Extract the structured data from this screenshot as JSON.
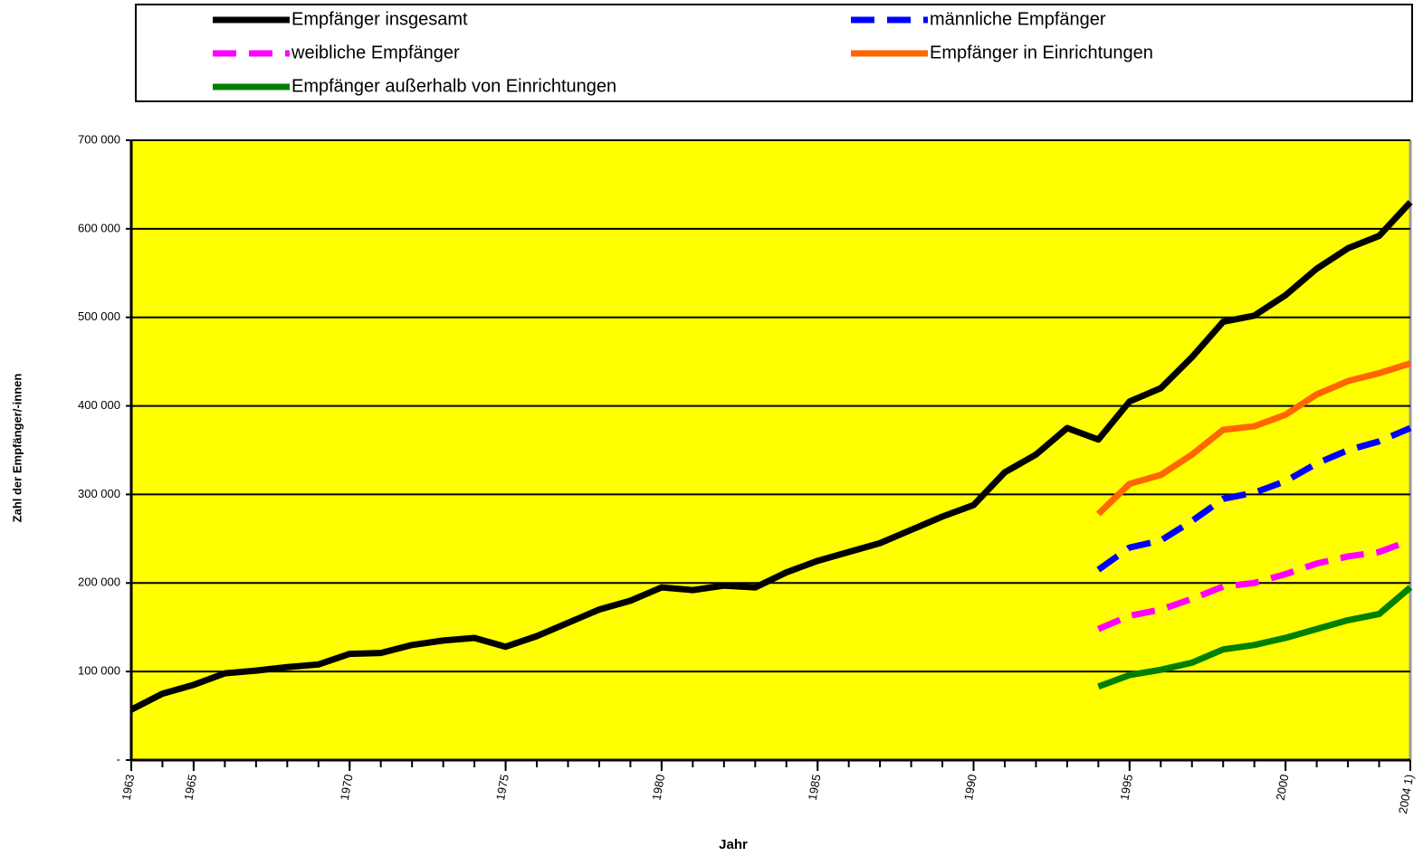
{
  "chart_data": {
    "type": "line",
    "y_label": "Zahl der Empfänger/-innen",
    "x_label": "Jahr",
    "x": [
      1963,
      1964,
      1965,
      1966,
      1967,
      1968,
      1969,
      1970,
      1971,
      1972,
      1973,
      1974,
      1975,
      1976,
      1977,
      1978,
      1979,
      1980,
      1981,
      1982,
      1983,
      1984,
      1985,
      1986,
      1987,
      1988,
      1989,
      1990,
      1991,
      1992,
      1993,
      1994,
      1995,
      1996,
      1997,
      1998,
      1999,
      2000,
      2001,
      2002,
      2003,
      2004
    ],
    "series": [
      {
        "name": "Empfänger insgesamt",
        "color": "#000000",
        "style": "solid",
        "values": [
          57000,
          75000,
          85000,
          98000,
          101000,
          105000,
          108000,
          120000,
          121000,
          130000,
          135000,
          138000,
          128000,
          140000,
          155000,
          170000,
          180000,
          195000,
          192000,
          197000,
          195000,
          212000,
          225000,
          235000,
          245000,
          260000,
          275000,
          288000,
          325000,
          345000,
          375000,
          362000,
          405000,
          420000,
          455000,
          495000,
          502000,
          525000,
          555000,
          578000,
          592000,
          630000
        ]
      },
      {
        "name": "männliche Empfänger",
        "color": "#0000ff",
        "style": "dashed",
        "values": [
          null,
          null,
          null,
          null,
          null,
          null,
          null,
          null,
          null,
          null,
          null,
          null,
          null,
          null,
          null,
          null,
          null,
          null,
          null,
          null,
          null,
          null,
          null,
          null,
          null,
          null,
          null,
          null,
          null,
          null,
          null,
          215000,
          240000,
          248000,
          270000,
          295000,
          302000,
          315000,
          335000,
          350000,
          360000,
          375000
        ]
      },
      {
        "name": "weibliche Empfänger",
        "color": "#ff00ff",
        "style": "dashed",
        "values": [
          null,
          null,
          null,
          null,
          null,
          null,
          null,
          null,
          null,
          null,
          null,
          null,
          null,
          null,
          null,
          null,
          null,
          null,
          null,
          null,
          null,
          null,
          null,
          null,
          null,
          null,
          null,
          null,
          null,
          null,
          null,
          148000,
          163000,
          170000,
          182000,
          196000,
          200000,
          210000,
          222000,
          230000,
          235000,
          248000
        ]
      },
      {
        "name": "Empfänger in Einrichtungen",
        "color": "#ff6600",
        "style": "solid",
        "values": [
          null,
          null,
          null,
          null,
          null,
          null,
          null,
          null,
          null,
          null,
          null,
          null,
          null,
          null,
          null,
          null,
          null,
          null,
          null,
          null,
          null,
          null,
          null,
          null,
          null,
          null,
          null,
          null,
          null,
          null,
          null,
          278000,
          312000,
          322000,
          345000,
          373000,
          377000,
          390000,
          413000,
          428000,
          437000,
          448000
        ]
      },
      {
        "name": "Empfänger außerhalb von Einrichtungen",
        "color": "#008000",
        "style": "solid",
        "values": [
          null,
          null,
          null,
          null,
          null,
          null,
          null,
          null,
          null,
          null,
          null,
          null,
          null,
          null,
          null,
          null,
          null,
          null,
          null,
          null,
          null,
          null,
          null,
          null,
          null,
          null,
          null,
          null,
          null,
          null,
          null,
          83000,
          96000,
          102000,
          110000,
          125000,
          130000,
          138000,
          148000,
          158000,
          165000,
          195000
        ]
      }
    ],
    "xlim": [
      1963,
      2004
    ],
    "xticks": [
      1963,
      1965,
      1970,
      1975,
      1980,
      1985,
      1990,
      1995,
      2000,
      {
        "value": 2004,
        "label": "2004 1)"
      }
    ],
    "ylim": [
      0,
      700000
    ],
    "yticks": [
      {
        "value": 0,
        "label": "-"
      },
      {
        "value": 100000,
        "label": "100 000"
      },
      {
        "value": 200000,
        "label": "200 000"
      },
      {
        "value": 300000,
        "label": "300 000"
      },
      {
        "value": 400000,
        "label": "400 000"
      },
      {
        "value": 500000,
        "label": "500 000"
      },
      {
        "value": 600000,
        "label": "600 000"
      },
      {
        "value": 700000,
        "label": "700 000"
      }
    ],
    "grid": true,
    "background": "#ffff00"
  }
}
